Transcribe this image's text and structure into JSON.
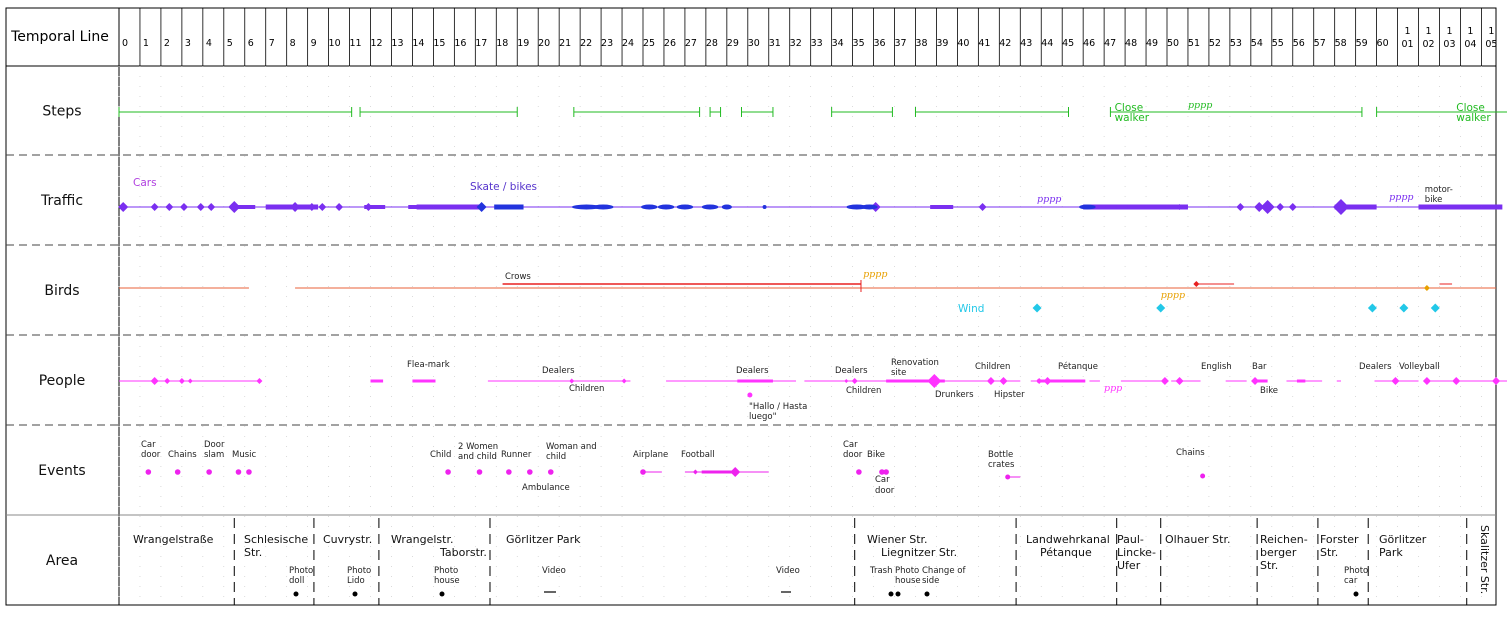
{
  "title": "Temporal Line",
  "ticks": [
    "0",
    "1",
    "2",
    "3",
    "4",
    "5",
    "6",
    "7",
    "8",
    "9",
    "10",
    "11",
    "12",
    "13",
    "14",
    "15",
    "16",
    "17",
    "18",
    "19",
    "20",
    "21",
    "22",
    "23",
    "24",
    "25",
    "26",
    "27",
    "28",
    "29",
    "30",
    "31",
    "32",
    "33",
    "34",
    "35",
    "36",
    "37",
    "38",
    "39",
    "40",
    "41",
    "42",
    "43",
    "44",
    "45",
    "46",
    "47",
    "48",
    "49",
    "50",
    "51",
    "52",
    "53",
    "54",
    "55",
    "56",
    "57",
    "58",
    "59",
    "60",
    "101",
    "102",
    "103",
    "104",
    "105"
  ],
  "rows": [
    "Steps",
    "Traffic",
    "Birds",
    "People",
    "Events",
    "Area"
  ],
  "colors": {
    "steps": "#22bb22",
    "traffic": "#7a2ff0",
    "traffic_blue": "#2233dd",
    "birds": "#e8603a",
    "crows": "#e82020",
    "wind": "#22c8e8",
    "pppp_orange": "#e8a000",
    "people": "#ff33ff",
    "events": "#ee22ee",
    "area": "#000000",
    "grid": "#cccccc"
  },
  "steps": {
    "segments": [
      [
        0,
        11.1
      ],
      [
        11.5,
        19
      ],
      [
        21.7,
        27.7
      ],
      [
        28.2,
        28.7
      ],
      [
        29.7,
        31.2
      ],
      [
        34,
        36.9
      ],
      [
        38,
        45.3
      ],
      [
        47.3,
        59.3
      ],
      [
        60,
        66.5
      ]
    ],
    "labels": [
      {
        "t": "Close",
        "x": 47.5,
        "r": 0
      },
      {
        "t": "walker",
        "x": 47.5,
        "r": 1
      },
      {
        "t": "pppp",
        "x": 51,
        "r": 2
      },
      {
        "t": "Close",
        "x": 63.8,
        "r": 0
      },
      {
        "t": "walker",
        "x": 63.8,
        "r": 1
      }
    ]
  },
  "traffic": {
    "labels": {
      "cars": "Cars",
      "skate": "Skate / bikes",
      "pppp1": "pppp",
      "pppp2": "pppp",
      "motor1": "motor-",
      "motor2": "bike"
    }
  },
  "birds": {
    "labels": {
      "crows": "Crows",
      "pppp1": "pppp",
      "pppp2": "pppp",
      "wind": "Wind"
    }
  },
  "people": {
    "labels": [
      "Flea-mark",
      "Dealers",
      "Children",
      "Dealers",
      "\"Hallo / Hasta",
      "luego\"",
      "Dealers",
      "Children",
      "Renovation",
      "site",
      "Children",
      "Drunkers",
      "Hipster",
      "Pétanque",
      "ppp",
      "English",
      "Bar",
      "Bike",
      "Dealers",
      "Volleyball"
    ]
  },
  "events": {
    "labels": [
      "Car",
      "door",
      "Chains",
      "Door",
      "slam",
      "Music",
      "Child",
      "2 Women",
      "and child",
      "Runner",
      "Woman and",
      "child",
      "Ambulance",
      "Airplane",
      "Football",
      "Car",
      "door",
      "Bike",
      "Car",
      "door",
      "Bottle",
      "crates",
      "Chains"
    ]
  },
  "area": {
    "labels": [
      "Wrangelstraße",
      "Schlesische",
      "Str.",
      "Cuvrystr.",
      "Wrangelstr.",
      "Taborstr.",
      "Görlitzer Park",
      "Wiener Str.",
      "Liegnitzer Str.",
      "Landwehrkanal",
      "Pétanque",
      "Paul-",
      "Lincke-",
      "Ufer",
      "Olhauer Str.",
      "Reichen-",
      "berger",
      "Str.",
      "Forster",
      "Str.",
      "Görlitzer",
      "Park",
      "Skalitzer Str."
    ],
    "notes": [
      "Photo",
      "doll",
      "Photo",
      "Lido",
      "Photo",
      "house",
      "Video",
      "Video",
      "Trash",
      "Photo",
      "house",
      "Change of",
      "side",
      "Photo",
      "car"
    ]
  }
}
